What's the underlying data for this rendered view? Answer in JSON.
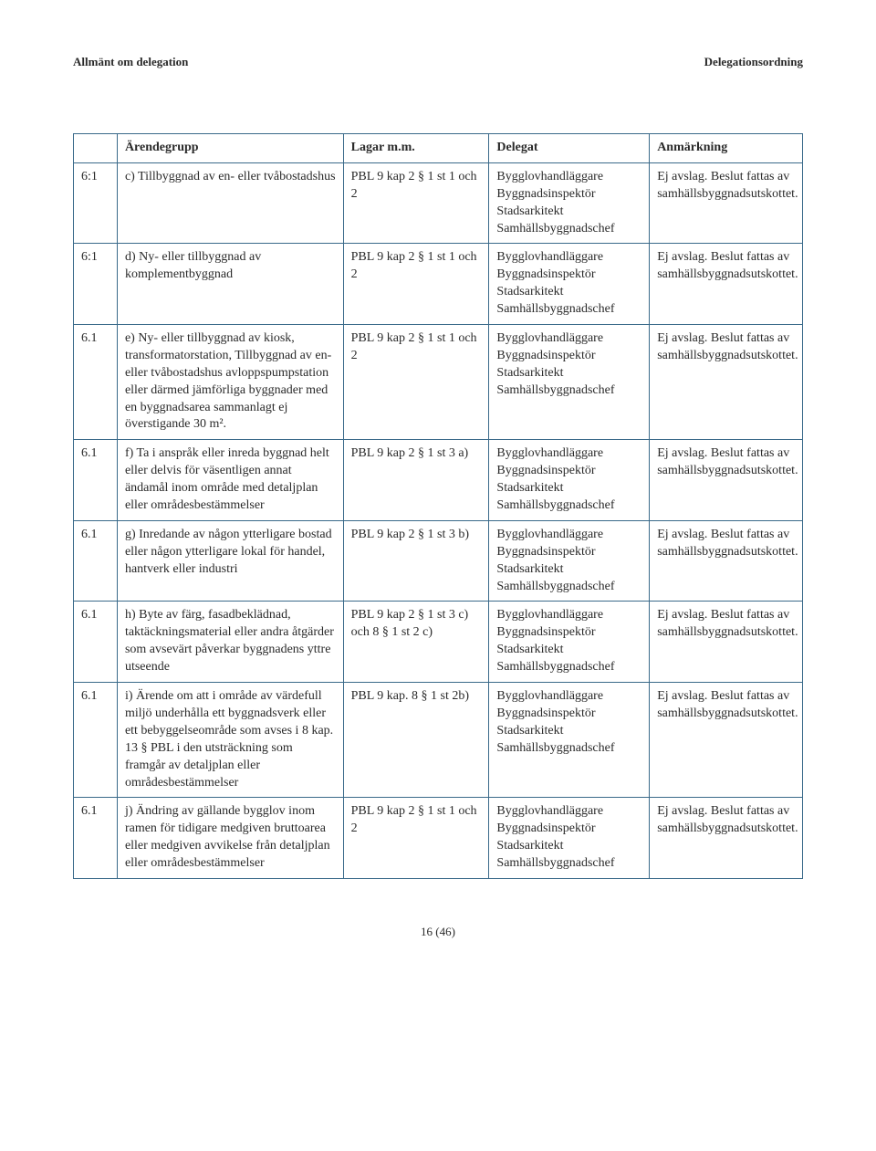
{
  "header": {
    "left": "Allmänt om delegation",
    "right": "Delegationsordning"
  },
  "columns": {
    "id": "",
    "arendegrupp": "Ärendegrupp",
    "lagar": "Lagar m.m.",
    "delegat": "Delegat",
    "anmarkning": "Anmärkning"
  },
  "rows": [
    {
      "id": "6:1",
      "arendegrupp": "c) Tillbyggnad av en- eller tvåbostadshus",
      "lagar": "PBL 9 kap 2 § 1 st 1 och 2",
      "delegat": "Bygglovhandläggare Byggnadsinspektör Stadsarkitekt Samhällsbyggnadschef",
      "anmarkning": "Ej avslag. Beslut fattas av samhällsbyggnadsutskottet."
    },
    {
      "id": "6:1",
      "arendegrupp": "d) Ny- eller tillbyggnad av komplementbyggnad",
      "lagar": "PBL 9 kap 2 § 1 st 1 och 2",
      "delegat": "Bygglovhandläggare Byggnadsinspektör Stadsarkitekt Samhällsbyggnadschef",
      "anmarkning": "Ej avslag. Beslut fattas av samhällsbyggnadsutskottet."
    },
    {
      "id": "6.1",
      "arendegrupp": "e) Ny- eller tillbyggnad av kiosk, transformatorstation, Tillbyggnad av en- eller tvåbostadshus avloppspumpstation eller därmed jämförliga byggnader med en byggnadsarea sammanlagt ej överstigande 30 m².",
      "lagar": "PBL 9 kap 2 § 1 st 1 och 2",
      "delegat": "Bygglovhandläggare Byggnadsinspektör Stadsarkitekt Samhällsbyggnadschef",
      "anmarkning": "Ej avslag. Beslut fattas av samhällsbyggnadsutskottet."
    },
    {
      "id": "6.1",
      "arendegrupp": "f) Ta i anspråk eller inreda byggnad helt eller delvis för väsentligen annat ändamål inom område med detaljplan eller områdesbestämmelser",
      "lagar": "PBL 9 kap 2 § 1 st 3 a)",
      "delegat": "Bygglovhandläggare Byggnadsinspektör Stadsarkitekt Samhällsbyggnadschef",
      "anmarkning": "Ej avslag. Beslut fattas av samhällsbyggnadsutskottet."
    },
    {
      "id": "6.1",
      "arendegrupp": "g) Inredande av någon ytterligare bostad eller någon ytterligare lokal för handel, hantverk eller industri",
      "lagar": "PBL 9 kap 2 § 1 st 3 b)",
      "delegat": "Bygglovhandläggare Byggnadsinspektör Stadsarkitekt Samhällsbyggnadschef",
      "anmarkning": "Ej avslag. Beslut fattas av samhällsbyggnadsutskottet."
    },
    {
      "id": "6.1",
      "arendegrupp": "h) Byte av färg, fasadbeklädnad, taktäckningsmaterial eller andra åtgärder som avsevärt påverkar byggnadens yttre utseende",
      "lagar": "PBL 9 kap 2 § 1 st 3 c) och 8 § 1 st 2 c)",
      "delegat": "Bygglovhandläggare Byggnadsinspektör Stadsarkitekt Samhällsbyggnadschef",
      "anmarkning": "Ej avslag. Beslut fattas av samhällsbyggnadsutskottet."
    },
    {
      "id": "6.1",
      "arendegrupp": "i) Ärende om att i område av värdefull miljö underhålla ett byggnadsverk eller ett bebyggelseområde som avses i 8 kap. 13 § PBL i den utsträckning som framgår av detaljplan eller områdesbestämmelser",
      "lagar": "PBL 9 kap. 8 § 1 st 2b)",
      "delegat": "Bygglovhandläggare Byggnadsinspektör Stadsarkitekt Samhällsbyggnadschef",
      "anmarkning": "Ej avslag. Beslut fattas av samhällsbyggnadsutskottet."
    },
    {
      "id": "6.1",
      "arendegrupp": "j) Ändring av gällande bygglov inom ramen för tidigare medgiven bruttoarea eller medgiven avvikelse från detaljplan eller områdesbestämmelser",
      "lagar": "PBL 9 kap 2 § 1 st 1 och 2",
      "delegat": "Bygglovhandläggare Byggnadsinspektör Stadsarkitekt Samhällsbyggnadschef",
      "anmarkning": "Ej avslag. Beslut fattas av samhällsbyggnadsutskottet."
    }
  ],
  "footer": "16 (46)"
}
